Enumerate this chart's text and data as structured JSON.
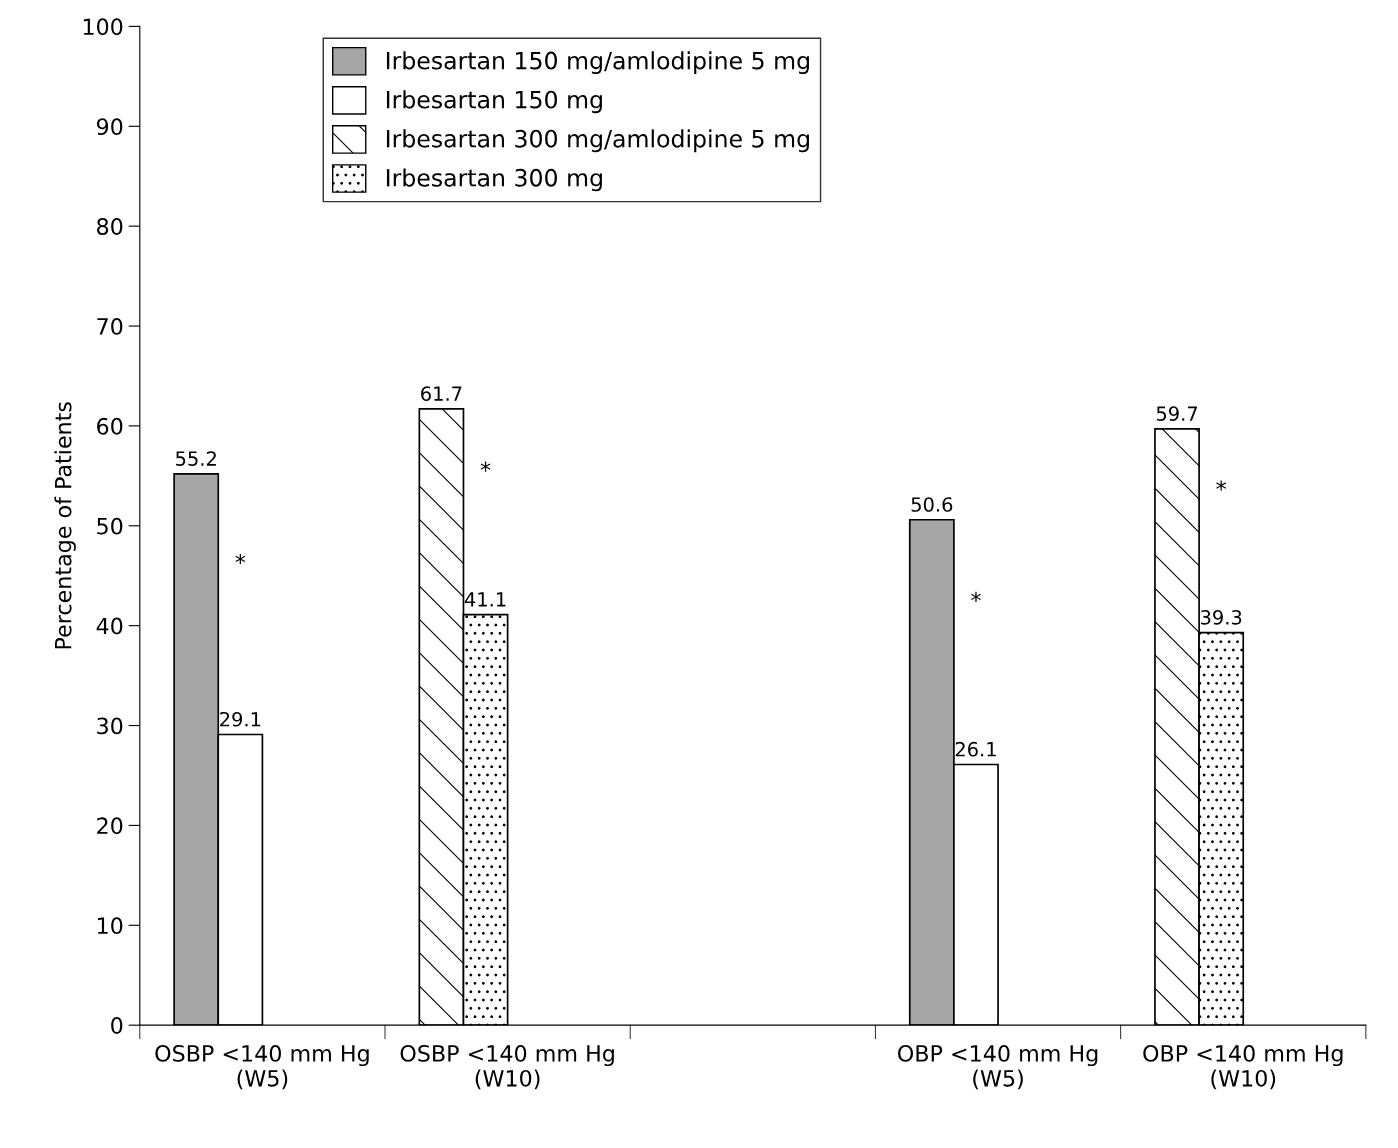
{
  "chart_data": {
    "type": "bar",
    "ylabel": "Percentage of Patients",
    "categories": [
      "OSBP <140 mm Hg\n(W5)",
      "OSBP <140 mm Hg\n(W10)",
      null,
      "OBP <140 mm Hg\n(W5)",
      "OBP <140 mm Hg\n(W10)"
    ],
    "series": [
      {
        "name": "Irbesartan 150 mg/amlodipine 5 mg",
        "color": "#a6a6a6",
        "values": [
          55.2,
          null,
          null,
          50.6,
          null
        ]
      },
      {
        "name": "Irbesartan 150 mg",
        "color": "#ffffff",
        "values": [
          29.1,
          null,
          null,
          26.1,
          null
        ]
      },
      {
        "name": "Irbesartan 300 mg/amlodipine 5 mg",
        "color": "#000000",
        "values": [
          null,
          61.7,
          null,
          null,
          59.7
        ]
      },
      {
        "name": "Irbesartan 300 mg",
        "color": "#000000",
        "values": [
          null,
          41.1,
          null,
          null,
          39.3
        ]
      }
    ],
    "ylim": [
      0,
      100
    ],
    "yticks": [
      0,
      10,
      20,
      30,
      40,
      50,
      60,
      70,
      80,
      90,
      100
    ],
    "data_labels": true,
    "grid": false,
    "legend": "top left",
    "annotations": [
      "*",
      "*",
      "*",
      "*"
    ]
  }
}
